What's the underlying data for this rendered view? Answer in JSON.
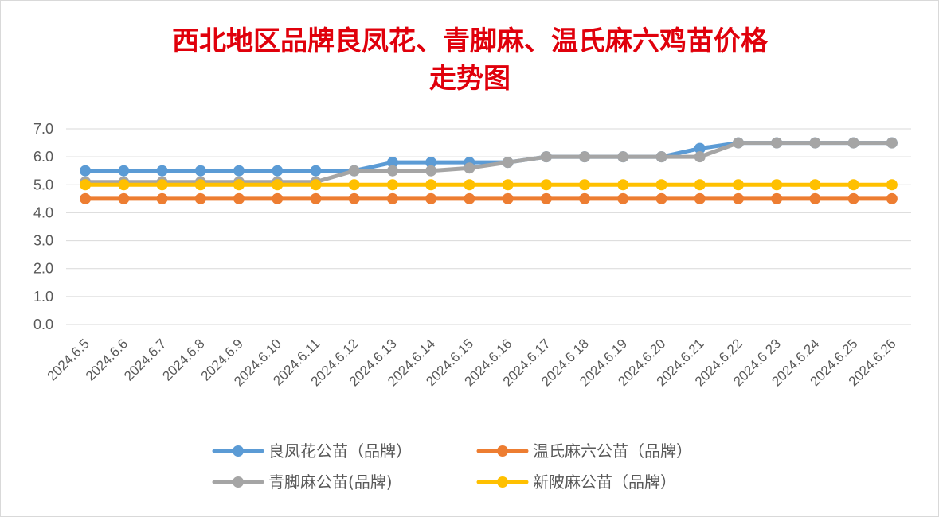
{
  "chart_data": {
    "type": "line",
    "title": "西北地区品牌良凤花、青脚麻、温氏麻六鸡苗价格",
    "subtitle": "走势图",
    "xlabel": "",
    "ylabel": "",
    "ylim": [
      0,
      7
    ],
    "yticks": [
      "0.0",
      "1.0",
      "2.0",
      "3.0",
      "4.0",
      "5.0",
      "6.0",
      "7.0"
    ],
    "grid": true,
    "legend_position": "bottom",
    "categories": [
      "2024.6.5",
      "2024.6.6",
      "2024.6.7",
      "2024.6.8",
      "2024.6.9",
      "2024.6.10",
      "2024.6.11",
      "2024.6.12",
      "2024.6.13",
      "2024.6.14",
      "2024.6.15",
      "2024.6.16",
      "2024.6.17",
      "2024.6.18",
      "2024.6.19",
      "2024.6.20",
      "2024.6.21",
      "2024.6.22",
      "2024.6.23",
      "2024.6.24",
      "2024.6.25",
      "2024.6.26"
    ],
    "series": [
      {
        "name": "良凤花公苗（品牌）",
        "color": "#5b9bd5",
        "values": [
          5.5,
          5.5,
          5.5,
          5.5,
          5.5,
          5.5,
          5.5,
          5.5,
          5.8,
          5.8,
          5.8,
          5.8,
          6.0,
          6.0,
          6.0,
          6.0,
          6.3,
          6.5,
          6.5,
          6.5,
          6.5,
          6.5
        ]
      },
      {
        "name": "温氏麻六公苗（品牌）",
        "color": "#ed7d31",
        "values": [
          4.5,
          4.5,
          4.5,
          4.5,
          4.5,
          4.5,
          4.5,
          4.5,
          4.5,
          4.5,
          4.5,
          4.5,
          4.5,
          4.5,
          4.5,
          4.5,
          4.5,
          4.5,
          4.5,
          4.5,
          4.5,
          4.5
        ]
      },
      {
        "name": "青脚麻公苗(品牌)",
        "color": "#a5a5a5",
        "values": [
          5.1,
          5.1,
          5.1,
          5.1,
          5.1,
          5.1,
          5.1,
          5.5,
          5.5,
          5.5,
          5.6,
          5.8,
          6.0,
          6.0,
          6.0,
          6.0,
          6.0,
          6.5,
          6.5,
          6.5,
          6.5,
          6.5
        ]
      },
      {
        "name": "新陂麻公苗（品牌）",
        "color": "#ffc000",
        "values": [
          5.0,
          5.0,
          5.0,
          5.0,
          5.0,
          5.0,
          5.0,
          5.0,
          5.0,
          5.0,
          5.0,
          5.0,
          5.0,
          5.0,
          5.0,
          5.0,
          5.0,
          5.0,
          5.0,
          5.0,
          5.0,
          5.0
        ]
      }
    ],
    "draw_order": [
      0,
      2,
      1,
      3
    ]
  }
}
